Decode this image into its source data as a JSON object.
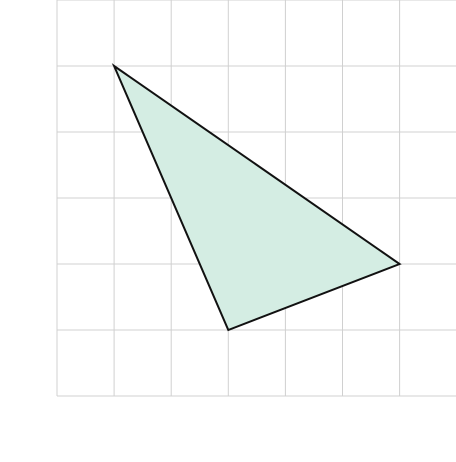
{
  "diagram": {
    "type": "grid-shape",
    "grid": {
      "columns": 7,
      "rows": 6,
      "line_color": "#d0d0d0"
    },
    "triangle": {
      "vertices": [
        {
          "col": 1,
          "row": 1
        },
        {
          "col": 6,
          "row": 4
        },
        {
          "col": 3,
          "row": 5
        }
      ],
      "fill_color": "#d4ede3",
      "stroke_color": "#111111"
    }
  }
}
